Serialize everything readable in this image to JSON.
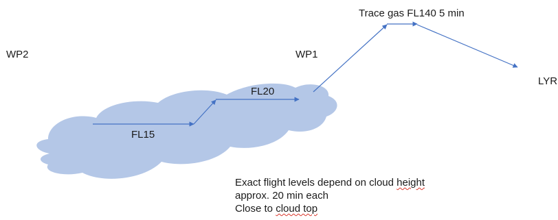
{
  "colors": {
    "cloud": "#b4c7e7",
    "arrow": "#4472c4",
    "text": "#1a1a1a",
    "spellcheck": "#d9362b"
  },
  "labels": {
    "wp2": "WP2",
    "wp1": "WP1",
    "lyr": "LYR",
    "trace_gas": "Trace gas FL140 5 min",
    "fl20": "FL20",
    "fl15": "FL15"
  },
  "notes": {
    "line1_a": "Exact flight levels depend on cloud ",
    "line1_b": "height",
    "line2": "approx. 20 min each",
    "line3_a": "Close to ",
    "line3_b": "cloud top"
  }
}
